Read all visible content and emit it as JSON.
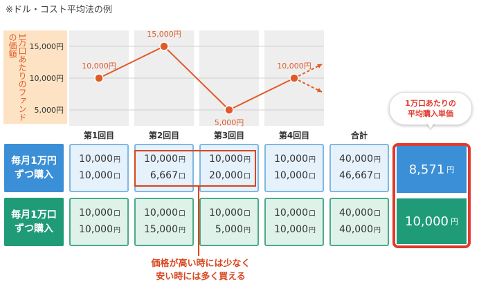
{
  "note": "※ドル・コスト平均法の例",
  "chart_data": {
    "type": "line",
    "title": "",
    "ylabel": "1万口あたりのファンドの価額",
    "categories": [
      "第1回目",
      "第2回目",
      "第3回目",
      "第4回目"
    ],
    "values": [
      10000,
      15000,
      5000,
      10000
    ],
    "point_labels": [
      "10,000円",
      "15,000円",
      "5,000円",
      "10,000円"
    ],
    "y_ticks": [
      "15,000円",
      "10,000円",
      "5,000円"
    ],
    "y_tick_values": [
      15000,
      10000,
      5000
    ],
    "ylim": [
      2500,
      17500
    ],
    "line_color": "#e05a28",
    "projection_arrows": true
  },
  "table": {
    "total_header": "合計",
    "rows": [
      {
        "label_line1": "毎月1万円",
        "label_line2": "ずつ購入",
        "color": "#3a8fd6",
        "cells": [
          {
            "a": "10,000",
            "au": "円",
            "b": "10,000",
            "bu": "口"
          },
          {
            "a": "10,000",
            "au": "円",
            "b": "6,667",
            "bu": "口"
          },
          {
            "a": "10,000",
            "au": "円",
            "b": "20,000",
            "bu": "口"
          },
          {
            "a": "10,000",
            "au": "円",
            "b": "10,000",
            "bu": "口"
          },
          {
            "a": "40,000",
            "au": "円",
            "b": "46,667",
            "bu": "口"
          }
        ],
        "result_value": "8,571",
        "result_unit": "円"
      },
      {
        "label_line1": "毎月1万口",
        "label_line2": "ずつ購入",
        "color": "#1f9b78",
        "cells": [
          {
            "a": "10,000",
            "au": "口",
            "b": "10,000",
            "bu": "円"
          },
          {
            "a": "10,000",
            "au": "口",
            "b": "15,000",
            "bu": "円"
          },
          {
            "a": "10,000",
            "au": "口",
            "b": "5,000",
            "bu": "円"
          },
          {
            "a": "10,000",
            "au": "口",
            "b": "10,000",
            "bu": "円"
          },
          {
            "a": "40,000",
            "au": "口",
            "b": "40,000",
            "bu": "円"
          }
        ],
        "result_value": "10,000",
        "result_unit": "円"
      }
    ]
  },
  "bubble": {
    "line1": "1万口あたりの",
    "line2": "平均購入単価"
  },
  "callout": {
    "line1": "価格が高い時には少なく",
    "line2": "安い時には多く買える"
  },
  "colors": {
    "accent_red": "#e03a2e",
    "blue_row": "#3a8fd6",
    "green_row": "#1f9b78"
  }
}
